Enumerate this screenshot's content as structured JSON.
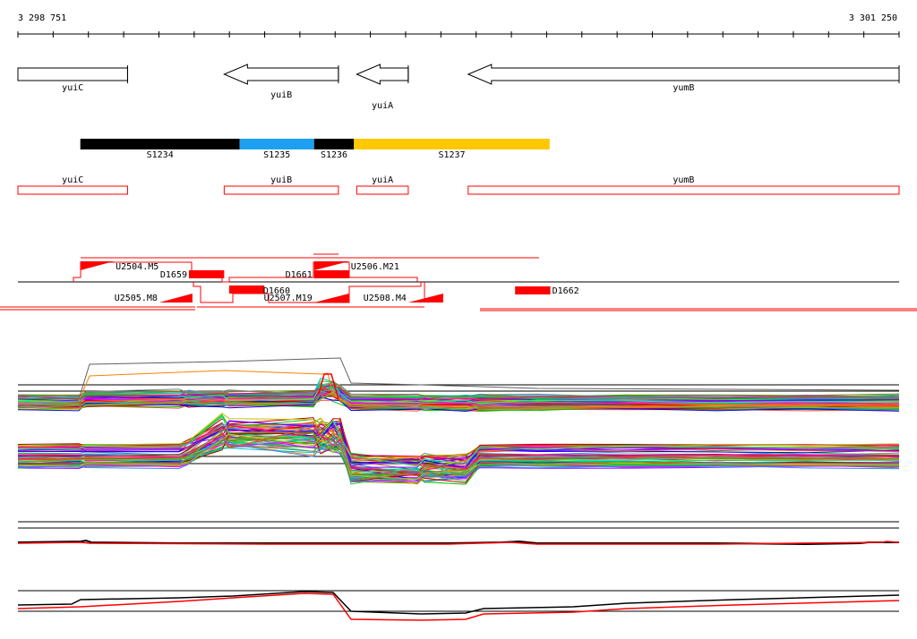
{
  "ruler": {
    "start": 3298751,
    "end": 3301250,
    "start_label": "3 298 751",
    "end_label": "3 301 250"
  },
  "colors": {
    "red": "#ff0000",
    "black": "#000000",
    "blue": "#1ea0f0",
    "gold": "#ffc800"
  },
  "genes": [
    {
      "name": "yuiC",
      "start": 3298751,
      "end": 3299062,
      "strand": "+",
      "label_row": "top"
    },
    {
      "name": "yuiB",
      "start": 3299336,
      "end": 3299660,
      "strand": "-",
      "label_row": "mid"
    },
    {
      "name": "yuiA",
      "start": 3299712,
      "end": 3299858,
      "strand": "-",
      "label_row": "low"
    },
    {
      "name": "yumB",
      "start": 3300028,
      "end": 3301250,
      "strand": "-",
      "label_row": "top"
    }
  ],
  "segments": [
    {
      "name": "S1234",
      "start": 3298928,
      "end": 3299380,
      "color": "#000000"
    },
    {
      "name": "S1235",
      "start": 3299380,
      "end": 3299591,
      "color": "#1ea0f0"
    },
    {
      "name": "S1236",
      "start": 3299591,
      "end": 3299704,
      "color": "#000000"
    },
    {
      "name": "S1237",
      "start": 3299704,
      "end": 3300259,
      "color": "#ffc800"
    }
  ],
  "features": [
    {
      "name": "U2504.M5",
      "type": "upshift",
      "start": 3298928,
      "end": 3299023,
      "row": "top"
    },
    {
      "name": "D1659",
      "type": "downshift",
      "start": 3299236,
      "end": 3299336,
      "row": "top"
    },
    {
      "name": "D1661",
      "type": "downshift",
      "start": 3299591,
      "end": 3299690,
      "row": "top"
    },
    {
      "name": "U2506.M21",
      "type": "upshift",
      "start": 3299591,
      "end": 3299690,
      "row": "top"
    },
    {
      "name": "U2505.M8",
      "type": "upshift",
      "start": 3299152,
      "end": 3299246,
      "row": "bottom"
    },
    {
      "name": "D1660",
      "type": "downshift",
      "start": 3299350,
      "end": 3299450,
      "row": "bottom"
    },
    {
      "name": "U2507.M19",
      "type": "upshift",
      "start": 3299591,
      "end": 3299690,
      "row": "bottom"
    },
    {
      "name": "U2508.M4",
      "type": "upshift",
      "start": 3299858,
      "end": 3299957,
      "row": "bottom"
    },
    {
      "name": "D1662",
      "type": "downshift",
      "start": 3300161,
      "end": 3300261,
      "row": "bottom"
    }
  ]
}
